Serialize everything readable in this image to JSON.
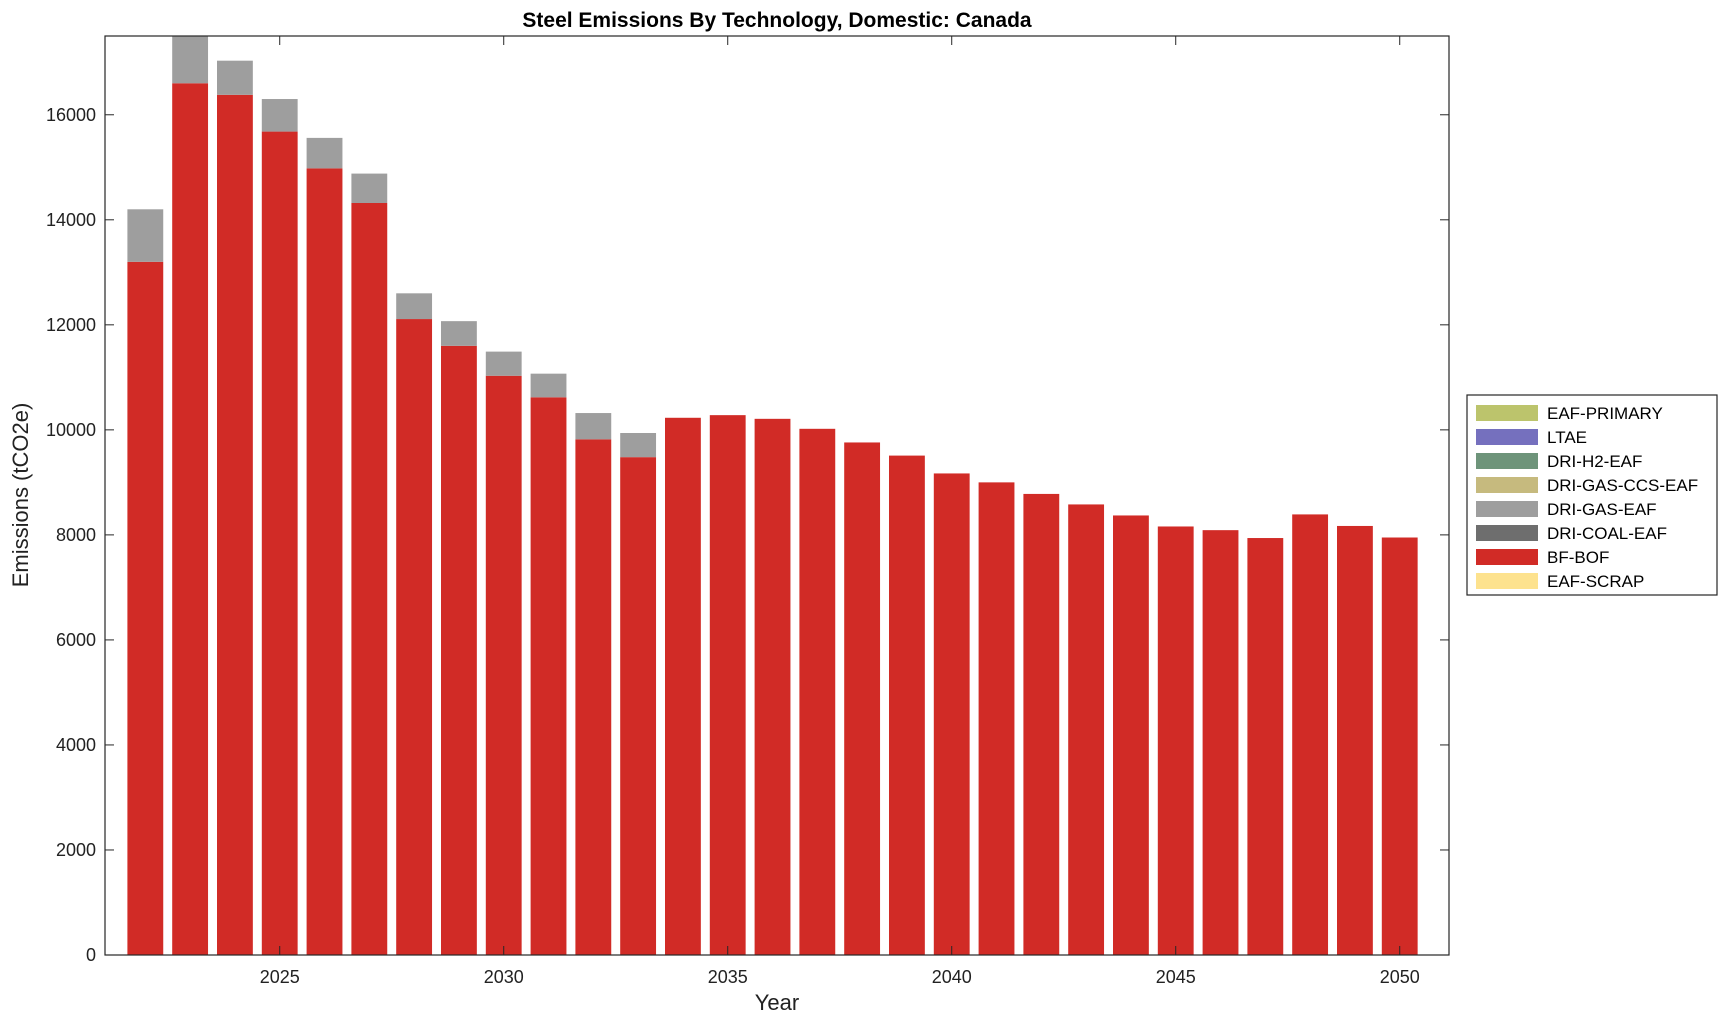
{
  "chart_data": {
    "type": "bar",
    "stacked": true,
    "title": "Steel Emissions By Technology, Domestic: Canada",
    "xlabel": "Year",
    "ylabel": "Emissions (tCO2e)",
    "x": [
      2022,
      2023,
      2024,
      2025,
      2026,
      2027,
      2028,
      2029,
      2030,
      2031,
      2032,
      2033,
      2034,
      2035,
      2036,
      2037,
      2038,
      2039,
      2040,
      2041,
      2042,
      2043,
      2044,
      2045,
      2046,
      2047,
      2048,
      2049,
      2050
    ],
    "xlim": [
      2021.1,
      2051.1
    ],
    "ylim": [
      0,
      17500
    ],
    "xticks": [
      2025,
      2030,
      2035,
      2040,
      2045,
      2050
    ],
    "yticks": [
      0,
      2000,
      4000,
      6000,
      8000,
      10000,
      12000,
      14000,
      16000
    ],
    "grid": false,
    "legend_position": "outside-right",
    "series": [
      {
        "name": "EAF-PRIMARY",
        "color": "#bcc46c",
        "values": [
          0,
          0,
          0,
          0,
          0,
          0,
          0,
          0,
          0,
          0,
          0,
          0,
          0,
          0,
          0,
          0,
          0,
          0,
          0,
          0,
          0,
          0,
          0,
          0,
          0,
          0,
          0,
          0,
          0
        ]
      },
      {
        "name": "LTAE",
        "color": "#7570be",
        "values": [
          0,
          0,
          0,
          0,
          0,
          0,
          0,
          0,
          0,
          0,
          0,
          0,
          0,
          0,
          0,
          0,
          0,
          0,
          0,
          0,
          0,
          0,
          0,
          0,
          0,
          0,
          0,
          0,
          0
        ]
      },
      {
        "name": "DRI-H2-EAF",
        "color": "#6e947a",
        "values": [
          0,
          0,
          0,
          0,
          0,
          0,
          0,
          0,
          0,
          0,
          0,
          0,
          0,
          0,
          0,
          0,
          0,
          0,
          0,
          0,
          0,
          0,
          0,
          0,
          0,
          0,
          0,
          0,
          0
        ]
      },
      {
        "name": "DRI-GAS-CCS-EAF",
        "color": "#c6ba7e",
        "values": [
          0,
          0,
          0,
          0,
          0,
          0,
          0,
          0,
          0,
          0,
          0,
          0,
          0,
          0,
          0,
          0,
          0,
          0,
          0,
          0,
          0,
          0,
          0,
          0,
          0,
          0,
          0,
          0,
          0
        ]
      },
      {
        "name": "DRI-GAS-EAF",
        "color": "#9e9e9e",
        "values": [
          1000,
          1050,
          650,
          620,
          580,
          560,
          490,
          470,
          460,
          450,
          500,
          460,
          0,
          0,
          0,
          0,
          0,
          0,
          0,
          0,
          0,
          0,
          0,
          0,
          0,
          0,
          0,
          0,
          0
        ]
      },
      {
        "name": "DRI-COAL-EAF",
        "color": "#6e6e6e",
        "values": [
          0,
          0,
          0,
          0,
          0,
          0,
          0,
          0,
          0,
          0,
          0,
          0,
          0,
          0,
          0,
          0,
          0,
          0,
          0,
          0,
          0,
          0,
          0,
          0,
          0,
          0,
          0,
          0,
          0
        ]
      },
      {
        "name": "BF-BOF",
        "color": "#d12b26",
        "values": [
          13200,
          16600,
          16380,
          15680,
          14980,
          14320,
          12110,
          11600,
          11030,
          10620,
          9820,
          9480,
          10230,
          10280,
          10210,
          10020,
          9760,
          9510,
          9170,
          9000,
          8780,
          8580,
          8370,
          8160,
          8090,
          7940,
          8390,
          8170,
          7950
        ]
      },
      {
        "name": "EAF-SCRAP",
        "color": "#fde28e",
        "values": [
          0,
          0,
          0,
          0,
          0,
          0,
          0,
          0,
          0,
          0,
          0,
          0,
          0,
          0,
          0,
          0,
          0,
          0,
          0,
          0,
          0,
          0,
          0,
          0,
          0,
          0,
          0,
          0,
          0
        ]
      }
    ],
    "stack_order": [
      "BF-BOF",
      "DRI-GAS-EAF",
      "DRI-COAL-EAF",
      "DRI-GAS-CCS-EAF",
      "DRI-H2-EAF",
      "LTAE",
      "EAF-PRIMARY",
      "EAF-SCRAP"
    ]
  }
}
